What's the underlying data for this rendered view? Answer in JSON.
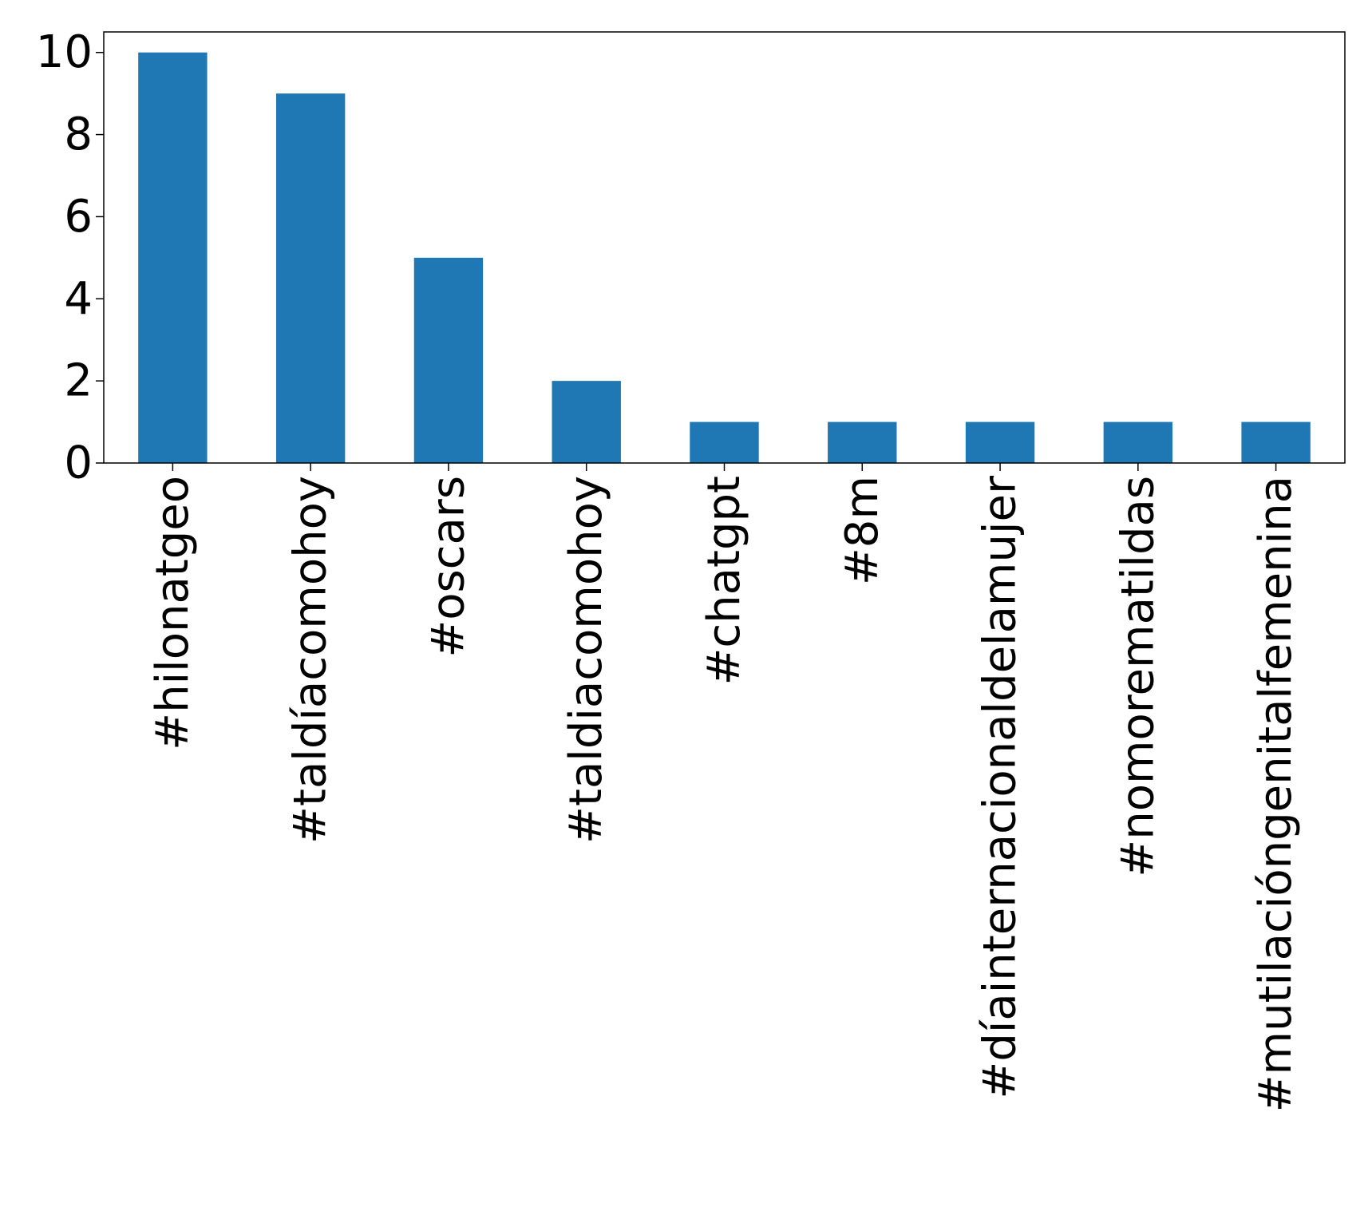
{
  "chart_data": {
    "type": "bar",
    "categories": [
      "#hilonatgeo",
      "#taldíacomohoy",
      "#oscars",
      "#taldiacomohoy",
      "#chatgpt",
      "#8m",
      "#díainternacionaldelamujer",
      "#nomorematildas",
      "#mutilacióngenitalfemenina"
    ],
    "values": [
      10,
      9,
      5,
      2,
      1,
      1,
      1,
      1,
      1
    ],
    "title": "",
    "xlabel": "",
    "ylabel": "",
    "ylim": [
      0,
      10.5
    ],
    "yticks": [
      0,
      2,
      4,
      6,
      8,
      10
    ],
    "grid": false,
    "bar_color": "#1f77b4"
  }
}
